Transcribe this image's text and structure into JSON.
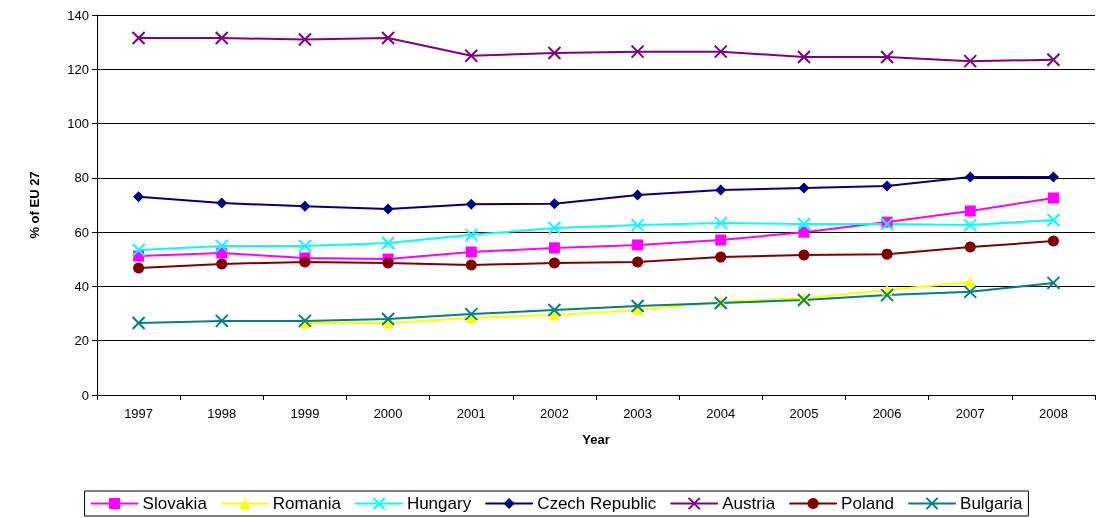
{
  "chart_data": {
    "type": "line",
    "xlabel": "Year",
    "ylabel": "% of EU 27",
    "categories": [
      "1997",
      "1998",
      "1999",
      "2000",
      "2001",
      "2002",
      "2003",
      "2004",
      "2005",
      "2006",
      "2007",
      "2008"
    ],
    "series": [
      {
        "name": "Slovakia",
        "color": "#ff00ff",
        "marker": "square",
        "values": [
          51.2,
          52.3,
          50.5,
          50.1,
          52.7,
          54.2,
          55.3,
          57.1,
          60,
          63.7,
          67.8,
          72.6
        ]
      },
      {
        "name": "Romania",
        "color": "#ffff00",
        "marker": "triangle",
        "values": [
          null,
          null,
          26.5,
          26.5,
          28.4,
          29.5,
          31.3,
          34.3,
          35.7,
          38.7,
          41.6,
          null
        ]
      },
      {
        "name": "Hungary",
        "color": "#00ffff",
        "marker": "cross",
        "values": [
          53.4,
          54.9,
          54.9,
          56,
          59,
          61.5,
          62.6,
          63.4,
          63,
          63,
          62.6,
          64.5
        ]
      },
      {
        "name": "Czech Republic",
        "color": "#000080",
        "marker": "diamond",
        "values": [
          73,
          70.7,
          69.5,
          68.5,
          70.3,
          70.5,
          73.7,
          75.5,
          76.3,
          77,
          80.3,
          80.3
        ]
      },
      {
        "name": "Austria",
        "color": "#800080",
        "marker": "cross",
        "values": [
          131.5,
          131.5,
          131,
          131.5,
          125,
          126,
          126.5,
          126.5,
          124.5,
          124.5,
          123,
          123.5
        ]
      },
      {
        "name": "Poland",
        "color": "#800000",
        "marker": "circle",
        "values": [
          46.8,
          48.3,
          49,
          48.6,
          47.9,
          48.6,
          49,
          50.8,
          51.6,
          51.9,
          54.5,
          56.7
        ]
      },
      {
        "name": "Bulgaria",
        "color": "#008080",
        "marker": "cross",
        "values": [
          26.5,
          27.3,
          27.3,
          28,
          29.8,
          31.3,
          32.8,
          33.9,
          35,
          36.8,
          38,
          41.3
        ]
      }
    ],
    "ylim": [
      0,
      140
    ],
    "yticks": [
      0,
      20,
      40,
      60,
      80,
      100,
      120,
      140
    ],
    "grid": "y",
    "legend": "bottom",
    "line_style": "solid"
  }
}
